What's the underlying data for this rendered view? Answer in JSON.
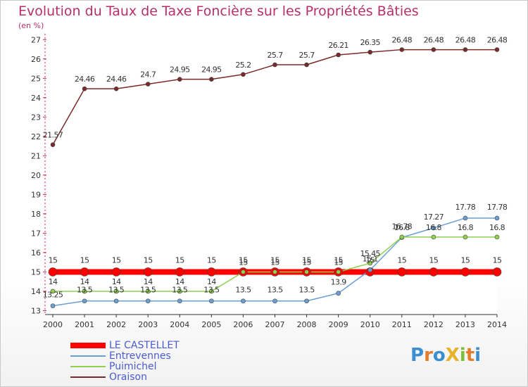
{
  "chart_data": {
    "type": "line",
    "title": "Evolution du Taux de Taxe Foncière sur les Propriétés Bâties",
    "ylabel": "(en %)",
    "xlabel": "",
    "x": [
      "2000",
      "2001",
      "2002",
      "2003",
      "2004",
      "2005",
      "2006",
      "2007",
      "2008",
      "2009",
      "2010",
      "2011",
      "2012",
      "2013",
      "2014"
    ],
    "ylim": [
      12.8,
      27.3
    ],
    "yticks": [
      13,
      14,
      15,
      16,
      17,
      18,
      19,
      20,
      21,
      22,
      23,
      24,
      25,
      26,
      27
    ],
    "series": [
      {
        "name": "LE CASTELLET",
        "color": "#ff0000",
        "values": [
          15,
          15,
          15,
          15,
          15,
          15,
          15,
          15,
          15,
          15,
          15,
          15,
          15,
          15,
          15
        ],
        "labels": [
          "15",
          "15",
          "15",
          "15",
          "15",
          "15",
          "15",
          "15",
          "15",
          "15",
          "15",
          "15",
          "15",
          "15",
          "15"
        ]
      },
      {
        "name": "Entrevennes",
        "color": "#6a9fd4",
        "values": [
          13.25,
          13.5,
          13.5,
          13.5,
          13.5,
          13.5,
          13.5,
          13.5,
          13.5,
          13.9,
          15.1,
          16.78,
          17.27,
          17.78,
          17.78
        ],
        "labels": [
          "13.25",
          "13.5",
          "13.5",
          "13.5",
          "13.5",
          "13.5",
          "13.5",
          "13.5",
          "13.5",
          "13.9",
          "15.1",
          "16.78",
          "17.27",
          "17.78",
          "17.78"
        ]
      },
      {
        "name": "Puimichel",
        "color": "#8fd14f",
        "values": [
          14,
          14,
          14,
          14,
          14,
          14,
          15,
          15,
          15,
          15,
          15.45,
          16.8,
          16.8,
          16.8,
          16.8
        ],
        "labels": [
          "14",
          "14",
          "14",
          "14",
          "14",
          "14",
          "15",
          "15",
          "15",
          "15",
          "15.45",
          "16.8",
          "16.8",
          "16.8",
          "16.8"
        ]
      },
      {
        "name": "Oraison",
        "color": "#7a2a2a",
        "values": [
          21.57,
          24.46,
          24.46,
          24.7,
          24.95,
          24.95,
          25.2,
          25.7,
          25.7,
          26.21,
          26.35,
          26.48,
          26.48,
          26.48,
          26.48
        ],
        "labels": [
          "21.57",
          "24.46",
          "24.46",
          "24.7",
          "24.95",
          "24.95",
          "25.2",
          "25.7",
          "25.7",
          "26.21",
          "26.35",
          "26.48",
          "26.48",
          "26.48",
          "26.48"
        ]
      }
    ]
  },
  "legend": {
    "items": [
      {
        "label": "LE CASTELLET"
      },
      {
        "label": "Entrevennes"
      },
      {
        "label": "Puimichel"
      },
      {
        "label": "Oraison"
      }
    ]
  },
  "logo": {
    "letters": [
      "P",
      "r",
      "o",
      "X",
      "i",
      "t",
      "i"
    ],
    "colors": [
      "#3a8fd0",
      "#e57c2a",
      "#3a8fd0",
      "#e5b22a",
      "#7bbf3a",
      "#e57c2a",
      "#3a8fd0"
    ]
  }
}
